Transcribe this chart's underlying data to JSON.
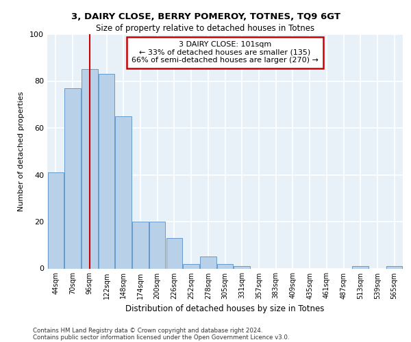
{
  "title1": "3, DAIRY CLOSE, BERRY POMEROY, TOTNES, TQ9 6GT",
  "title2": "Size of property relative to detached houses in Totnes",
  "xlabel": "Distribution of detached houses by size in Totnes",
  "ylabel": "Number of detached properties",
  "categories": [
    "44sqm",
    "70sqm",
    "96sqm",
    "122sqm",
    "148sqm",
    "174sqm",
    "200sqm",
    "226sqm",
    "252sqm",
    "278sqm",
    "305sqm",
    "331sqm",
    "357sqm",
    "383sqm",
    "409sqm",
    "435sqm",
    "461sqm",
    "487sqm",
    "513sqm",
    "539sqm",
    "565sqm"
  ],
  "values": [
    41,
    77,
    85,
    83,
    65,
    20,
    20,
    13,
    2,
    5,
    2,
    1,
    0,
    0,
    0,
    0,
    0,
    0,
    1,
    0,
    1
  ],
  "bar_color": "#b8d0e8",
  "bar_edge_color": "#6699cc",
  "background_color": "#e8f0f8",
  "grid_color": "#ffffff",
  "vline_x": 2.0,
  "vline_color": "#cc0000",
  "annotation_title": "3 DAIRY CLOSE: 101sqm",
  "annotation_line1": "← 33% of detached houses are smaller (135)",
  "annotation_line2": "66% of semi-detached houses are larger (270) →",
  "annotation_box_color": "#ffffff",
  "annotation_box_edge_color": "#cc0000",
  "footer1": "Contains HM Land Registry data © Crown copyright and database right 2024.",
  "footer2": "Contains public sector information licensed under the Open Government Licence v3.0.",
  "ylim": [
    0,
    100
  ],
  "yticks": [
    0,
    20,
    40,
    60,
    80,
    100
  ]
}
